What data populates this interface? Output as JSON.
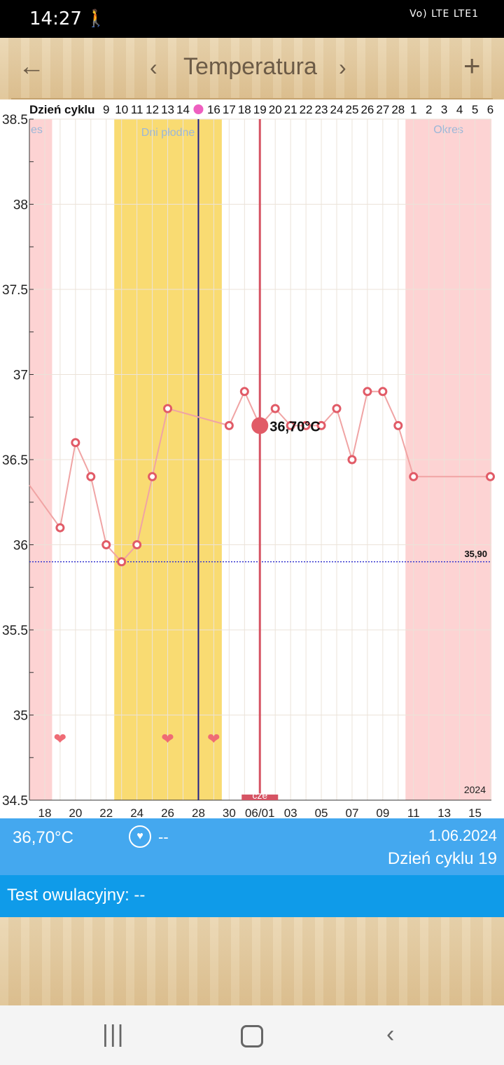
{
  "status_bar": {
    "time": "14:27",
    "icons": [
      "walk-icon",
      "mute-icon",
      "volte-icon",
      "lte-icon",
      "signal-icon",
      "battery-icon"
    ],
    "indicators_text": "Vo) LTE LTE1"
  },
  "header": {
    "title": "Temperatura",
    "back_icon": "back-arrow-icon",
    "prev_icon": "chevron-left-icon",
    "next_icon": "chevron-right-icon",
    "add_icon": "plus-icon"
  },
  "chart_data": {
    "type": "line",
    "cycle_header_label": "Dzień cyklu",
    "cycle_days": [
      "9",
      "10",
      "11",
      "12",
      "13",
      "14",
      "",
      "16",
      "17",
      "18",
      "19",
      "20",
      "21",
      "22",
      "23",
      "24",
      "25",
      "26",
      "27",
      "28",
      "1",
      "2",
      "3",
      "4",
      "5",
      "6"
    ],
    "ovulation_marker_day": 15,
    "x_tick_labels": [
      "18",
      "20",
      "22",
      "24",
      "26",
      "28",
      "30",
      "06/01",
      "03",
      "05",
      "07",
      "09",
      "11",
      "13",
      "15"
    ],
    "y_tick_labels": [
      "38.5",
      "38",
      "37.5",
      "37",
      "36.5",
      "36",
      "35.5",
      "35",
      "34.5"
    ],
    "ylim": [
      34.5,
      38.5
    ],
    "x_dates": [
      "05-17",
      "05-18",
      "05-19",
      "05-20",
      "05-21",
      "05-22",
      "05-23",
      "05-24",
      "05-25",
      "05-26",
      "05-27",
      "05-28",
      "05-29",
      "05-30",
      "05-31",
      "06-01",
      "06-02",
      "06-03",
      "06-04",
      "06-05",
      "06-06",
      "06-07",
      "06-08",
      "06-09",
      "06-10",
      "06-11",
      "06-12",
      "06-13",
      "06-14",
      "06-15",
      "06-16"
    ],
    "series": [
      {
        "values": [
          36.35,
          null,
          36.1,
          36.6,
          36.4,
          36.0,
          35.9,
          36.0,
          36.4,
          36.8,
          null,
          null,
          null,
          36.7,
          36.9,
          36.7,
          36.8,
          36.7,
          36.7,
          36.7,
          36.8,
          36.5,
          36.9,
          36.9,
          36.7,
          36.4,
          null,
          null,
          null,
          null,
          36.4
        ]
      }
    ],
    "coverline": {
      "value": 35.9,
      "label": "35,90"
    },
    "fertile_window": {
      "label": "Dni płodne",
      "from": "05-23",
      "to": "05-29"
    },
    "period_zones": [
      {
        "label": "es",
        "from": "05-17",
        "to": "05-18"
      },
      {
        "label": "Okres",
        "from": "06-11",
        "to": "06-16"
      }
    ],
    "ovulation_date": "05-28",
    "selected": {
      "date": "06-01",
      "label": "36,70°C",
      "value": 36.7,
      "weekday": "cze"
    },
    "hearts": [
      "05-19",
      "05-26",
      "05-29"
    ],
    "year_label": "2024",
    "colors": {
      "line": "#f0a4a4",
      "point": "#e15b67",
      "fertile": "#f9db72",
      "period": "#fdd3d3",
      "ovulation_line": "#1f1f8a",
      "selected_line": "#d65464",
      "coverline": "#3b3bd0",
      "heart": "#ef6b75"
    }
  },
  "info": {
    "temperature": "36,70°C",
    "heart_icon": "heart-circle-icon",
    "intercourse": "--",
    "date": "1.06.2024",
    "cycle_day": "Dzień cyklu 19"
  },
  "ovulation_test": {
    "label": "Test owulacyjny: --"
  },
  "nav_bar": {
    "recent_icon": "recent-apps-icon",
    "home_icon": "home-icon",
    "back_icon": "back-nav-icon"
  }
}
